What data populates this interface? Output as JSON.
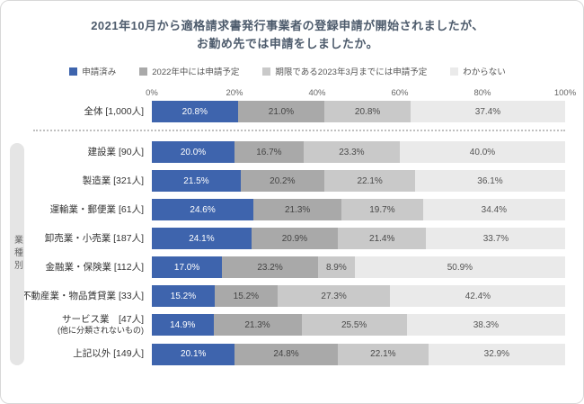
{
  "chart_data": {
    "type": "bar",
    "orientation": "horizontal",
    "stacked": true,
    "title_lines": [
      "2021年10月から適格請求書発行事業者の登録申請が開始されましたが、",
      "お勤め先では申請をしましたか。"
    ],
    "group_axis_label": "業種別",
    "x_ticks": [
      "0%",
      "20%",
      "40%",
      "60%",
      "80%",
      "100%"
    ],
    "xlim": [
      0,
      100
    ],
    "value_suffix": "%",
    "legend_position": "top",
    "grid": false,
    "series": [
      {
        "name": "申請済み",
        "color": "#3e64ad",
        "text_color": "#ffffff"
      },
      {
        "name": "2022年中には申請予定",
        "color": "#a9a9a9",
        "text_color": "#454545"
      },
      {
        "name": "期限である2023年3月までには申請予定",
        "color": "#c9c9c9",
        "text_color": "#4a4a4a"
      },
      {
        "name": "わからない",
        "color": "#eaeaea",
        "text_color": "#555555"
      }
    ],
    "groups": [
      {
        "name": "overall",
        "rows": [
          {
            "label": "全体 [1,000人]",
            "values": [
              20.8,
              21.0,
              20.8,
              37.4
            ]
          }
        ]
      },
      {
        "name": "業種別",
        "rows": [
          {
            "label": "建設業 [90人]",
            "values": [
              20.0,
              16.7,
              23.3,
              40.0
            ]
          },
          {
            "label": "製造業 [321人]",
            "values": [
              21.5,
              20.2,
              22.1,
              36.1
            ]
          },
          {
            "label": "運輸業・郵便業 [61人]",
            "values": [
              24.6,
              21.3,
              19.7,
              34.4
            ]
          },
          {
            "label": "卸売業・小売業 [187人]",
            "values": [
              24.1,
              20.9,
              21.4,
              33.7
            ]
          },
          {
            "label": "金融業・保険業 [112人]",
            "values": [
              17.0,
              23.2,
              8.9,
              50.9
            ]
          },
          {
            "label": "不動産業・物品賃貸業 [33人]",
            "values": [
              15.2,
              15.2,
              27.3,
              42.4
            ]
          },
          {
            "label": "サービス業　[47人]",
            "sublabel": "(他に分類されないもの)",
            "values": [
              14.9,
              21.3,
              25.5,
              38.3
            ]
          },
          {
            "label": "上記以外 [149人]",
            "values": [
              20.1,
              24.8,
              22.1,
              32.9
            ]
          }
        ]
      }
    ]
  }
}
